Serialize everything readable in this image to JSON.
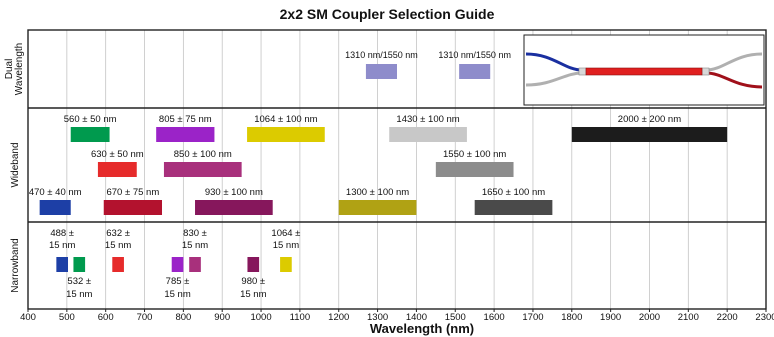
{
  "chart_data": {
    "type": "bar",
    "title": "2x2 SM Coupler Selection Guide",
    "xlabel": "Wavelength (nm)",
    "xlim": [
      400,
      2300
    ],
    "xticks": [
      400,
      500,
      600,
      700,
      800,
      900,
      1000,
      1100,
      1200,
      1300,
      1400,
      1500,
      1600,
      1700,
      1800,
      1900,
      2000,
      2100,
      2200,
      2300
    ],
    "grid": true,
    "categories": [
      "Dual Wavelength",
      "Wideband",
      "Narrowband"
    ],
    "series": [
      {
        "name": "Dual Wavelength",
        "bars": [
          {
            "label": "1310 nm/1550 nm",
            "start": 1270,
            "end": 1350,
            "color": "#8e8ccb",
            "lane": 0
          },
          {
            "label": "1310 nm/1550 nm",
            "start": 1510,
            "end": 1590,
            "color": "#8e8ccb",
            "lane": 0
          }
        ]
      },
      {
        "name": "Wideband",
        "bars": [
          {
            "label": "560 ± 50 nm",
            "start": 510,
            "end": 610,
            "color": "#009a4e",
            "lane": 0
          },
          {
            "label": "805 ± 75 nm",
            "start": 730,
            "end": 880,
            "color": "#9b23c8",
            "lane": 0
          },
          {
            "label": "1064 ± 100 nm",
            "start": 964,
            "end": 1164,
            "color": "#dccb00",
            "lane": 0
          },
          {
            "label": "1430 ± 100 nm",
            "start": 1330,
            "end": 1530,
            "color": "#c8c8c8",
            "lane": 0
          },
          {
            "label": "2000 ± 200 nm",
            "start": 1800,
            "end": 2200,
            "color": "#1c1c1c",
            "lane": 0
          },
          {
            "label": "630 ± 50 nm",
            "start": 580,
            "end": 680,
            "color": "#e62b2b",
            "lane": 1
          },
          {
            "label": "850 ± 100 nm",
            "start": 750,
            "end": 950,
            "color": "#a8307c",
            "lane": 1
          },
          {
            "label": "1550 ± 100 nm",
            "start": 1450,
            "end": 1650,
            "color": "#8c8c8c",
            "lane": 1
          },
          {
            "label": "470 ± 40 nm",
            "start": 430,
            "end": 510,
            "color": "#1d3fa6",
            "lane": 2
          },
          {
            "label": "670 ± 75 nm",
            "start": 595,
            "end": 745,
            "color": "#b3122e",
            "lane": 2
          },
          {
            "label": "930 ± 100 nm",
            "start": 830,
            "end": 1030,
            "color": "#86175c",
            "lane": 2
          },
          {
            "label": "1300 ± 100 nm",
            "start": 1200,
            "end": 1400,
            "color": "#b0a214",
            "lane": 2
          },
          {
            "label": "1650 ± 100 nm",
            "start": 1550,
            "end": 1750,
            "color": "#4a4a4a",
            "lane": 2
          }
        ]
      },
      {
        "name": "Narrowband",
        "bars": [
          {
            "label_top": "488 ±",
            "label_bottom": "15 nm",
            "label_pos": "above",
            "start": 473,
            "end": 503,
            "color": "#1d3fa6"
          },
          {
            "label_top": "532 ±",
            "label_bottom": "15 nm",
            "label_pos": "below",
            "start": 517,
            "end": 547,
            "color": "#009a4e"
          },
          {
            "label_top": "632 ±",
            "label_bottom": "15 nm",
            "label_pos": "above",
            "start": 617,
            "end": 647,
            "color": "#e62b2b"
          },
          {
            "label_top": "785 ±",
            "label_bottom": "15 nm",
            "label_pos": "below",
            "start": 770,
            "end": 800,
            "color": "#9b23c8"
          },
          {
            "label_top": "830 ±",
            "label_bottom": "15 nm",
            "label_pos": "above",
            "start": 815,
            "end": 845,
            "color": "#a8307c"
          },
          {
            "label_top": "980 ±",
            "label_bottom": "15 nm",
            "label_pos": "below",
            "start": 965,
            "end": 995,
            "color": "#86175c"
          },
          {
            "label_top": "1064 ±",
            "label_bottom": "15 nm",
            "label_pos": "above",
            "start": 1049,
            "end": 1079,
            "color": "#dccb00"
          }
        ]
      }
    ]
  },
  "inset": {
    "cable_colors": {
      "input_1": "#1a2fa0",
      "main": "#e01f1f",
      "output_2": "#a0101a",
      "fiber_gray": "#b0b0b0"
    }
  }
}
